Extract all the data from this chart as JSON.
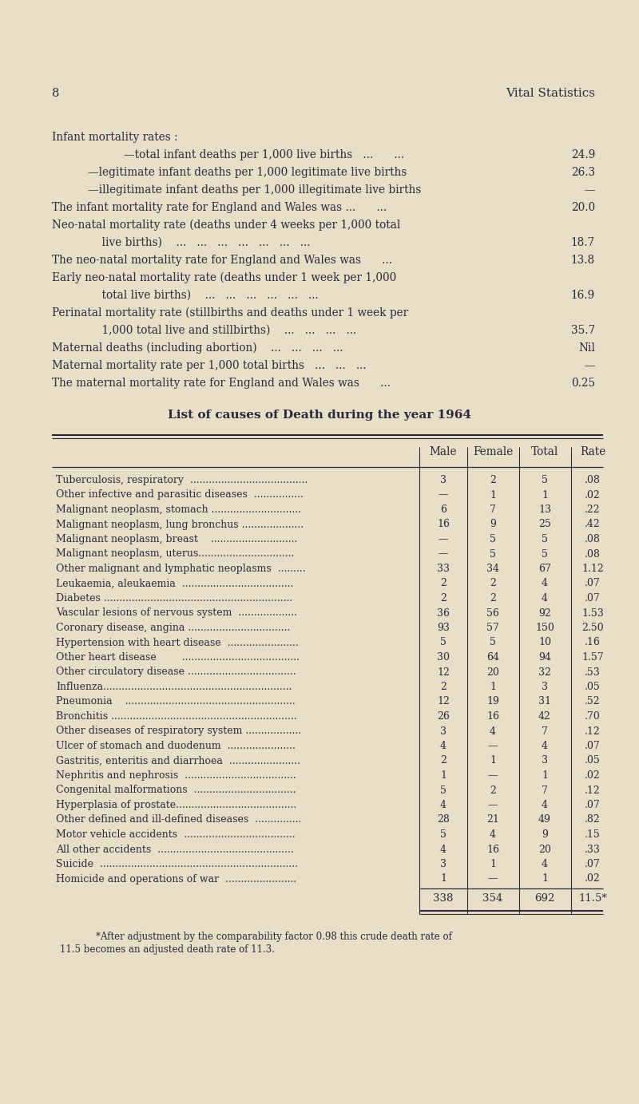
{
  "bg_color": "#e8dfc8",
  "text_color": "#2a2a3a",
  "page_num": "8",
  "page_header": "Vital Statistics",
  "intro_blocks": [
    {
      "text": "Infant mortality rates :",
      "indent": 0,
      "value": ""
    },
    {
      "text": "—total infant deaths per 1,000 live births   ...      ...",
      "indent": 2,
      "value": "24.9"
    },
    {
      "text": "—legitimate infant deaths per 1,000 legitimate live births",
      "indent": 1,
      "value": "26.3"
    },
    {
      "text": "—illegitimate infant deaths per 1,000 illegitimate live births",
      "indent": 1,
      "value": "—"
    },
    {
      "text": "The infant mortality rate for England and Wales was ...      ...",
      "indent": 0,
      "value": "20.0"
    },
    {
      "text": "Neo-natal mortality rate (deaths under 4 weeks per 1,000 total",
      "indent": 0,
      "value": ""
    },
    {
      "text": "    live births)    ...   ...   ...   ...   ...   ...   ...",
      "indent": 1,
      "value": "18.7"
    },
    {
      "text": "The neo-natal mortality rate for England and Wales was      ...",
      "indent": 0,
      "value": "13.8"
    },
    {
      "text": "Early neo-natal mortality rate (deaths under 1 week per 1,000",
      "indent": 0,
      "value": ""
    },
    {
      "text": "    total live births)    ...   ...   ...   ...   ...   ...",
      "indent": 1,
      "value": "16.9"
    },
    {
      "text": "Perinatal mortality rate (stillbirths and deaths under 1 week per",
      "indent": 0,
      "value": ""
    },
    {
      "text": "    1,000 total live and stillbirths)    ...   ...   ...   ...",
      "indent": 1,
      "value": "35.7"
    },
    {
      "text": "Maternal deaths (including abortion)    ...   ...   ...   ...",
      "indent": 0,
      "value": "Nil"
    },
    {
      "text": "Maternal mortality rate per 1,000 total births   ...   ...   ...",
      "indent": 0,
      "value": "—"
    },
    {
      "text": "The maternal mortality rate for England and Wales was      ...",
      "indent": 0,
      "value": "0.25"
    }
  ],
  "table_title": "List of causes of Death during the year 1964",
  "table_rows": [
    [
      "Tuberculosis, respiratory  ......................................",
      "3",
      "2",
      "5",
      ".08"
    ],
    [
      "Other infective and parasitic diseases  ................",
      "—",
      "1",
      "1",
      ".02"
    ],
    [
      "Malignant neoplasm, stomach .............................",
      "6",
      "7",
      "13",
      ".22"
    ],
    [
      "Malignant neoplasm, lung bronchus ....................",
      "16",
      "9",
      "25",
      ".42"
    ],
    [
      "Malignant neoplasm, breast    ............................",
      "—",
      "5",
      "5",
      ".08"
    ],
    [
      "Malignant neoplasm, uterus...............................",
      "—",
      "5",
      "5",
      ".08"
    ],
    [
      "Other malignant and lymphatic neoplasms  .........",
      "33",
      "34",
      "67",
      "1.12"
    ],
    [
      "Leukaemia, aleukaemia  ....................................",
      "2",
      "2",
      "4",
      ".07"
    ],
    [
      "Diabetes .............................................................",
      "2",
      "2",
      "4",
      ".07"
    ],
    [
      "Vascular lesions of nervous system  ...................",
      "36",
      "56",
      "92",
      "1.53"
    ],
    [
      "Coronary disease, angina .................................",
      "93",
      "57",
      "150",
      "2.50"
    ],
    [
      "Hypertension with heart disease  .......................",
      "5",
      "5",
      "10",
      ".16"
    ],
    [
      "Other heart disease        ......................................",
      "30",
      "64",
      "94",
      "1.57"
    ],
    [
      "Other circulatory disease ...................................",
      "12",
      "20",
      "32",
      ".53"
    ],
    [
      "Influenza.............................................................",
      "2",
      "1",
      "3",
      ".05"
    ],
    [
      "Pneumonia    .......................................................",
      "12",
      "19",
      "31",
      ".52"
    ],
    [
      "Bronchitis ............................................................",
      "26",
      "16",
      "42",
      ".70"
    ],
    [
      "Other diseases of respiratory system ..................",
      "3",
      "4",
      "7",
      ".12"
    ],
    [
      "Ulcer of stomach and duodenum  ......................",
      "4",
      "—",
      "4",
      ".07"
    ],
    [
      "Gastritis, enteritis and diarrhoea  .......................",
      "2",
      "1",
      "3",
      ".05"
    ],
    [
      "Nephritis and nephrosis  ....................................",
      "1",
      "—",
      "1",
      ".02"
    ],
    [
      "Congenital malformations  .................................",
      "5",
      "2",
      "7",
      ".12"
    ],
    [
      "Hyperplasia of prostate.......................................",
      "4",
      "—",
      "4",
      ".07"
    ],
    [
      "Other defined and ill-defined diseases  ...............",
      "28",
      "21",
      "49",
      ".82"
    ],
    [
      "Motor vehicle accidents  ....................................",
      "5",
      "4",
      "9",
      ".15"
    ],
    [
      "All other accidents  ............................................",
      "4",
      "16",
      "20",
      ".33"
    ],
    [
      "Suicide  ................................................................",
      "3",
      "1",
      "4",
      ".07"
    ],
    [
      "Homicide and operations of war  .......................",
      "1",
      "—",
      "1",
      ".02"
    ]
  ],
  "table_totals": [
    "338",
    "354",
    "692",
    "11.5*"
  ],
  "footnote_line1": "*After adjustment by the comparability factor 0.98 this crude death rate of",
  "footnote_line2": "11.5 becomes an adjusted death rate of 11.3."
}
